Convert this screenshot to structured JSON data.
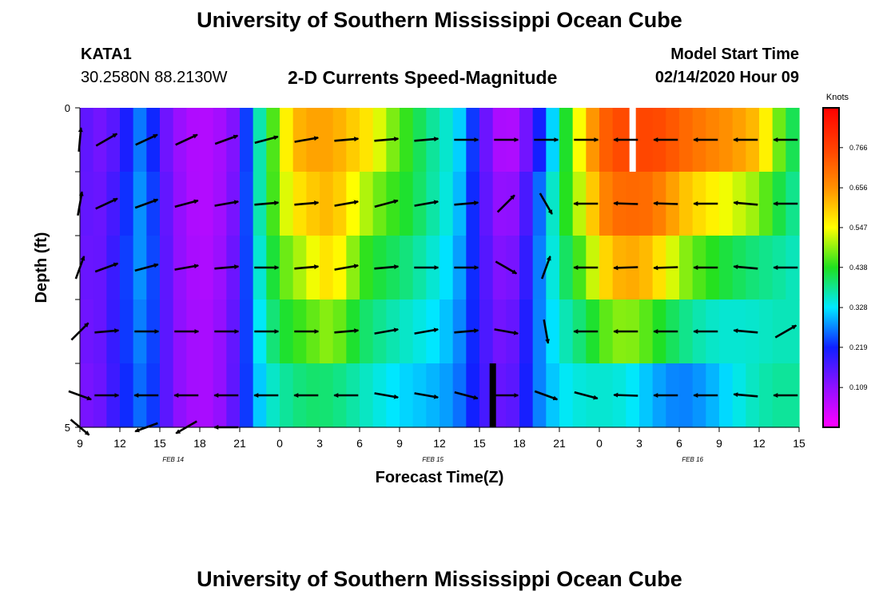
{
  "page": {
    "title_top": "University of Southern Mississippi Ocean Cube",
    "title_bottom": "University of Southern Mississippi Ocean Cube",
    "station": "KATA1",
    "coords": "30.2580N 88.2130W",
    "subtitle": "2-D Currents Speed-Magnitude",
    "model_label": "Model Start Time",
    "model_time": "02/14/2020 Hour 09"
  },
  "chart_data": {
    "type": "heatmap",
    "title": "2-D Currents Speed-Magnitude",
    "xlabel": "Forecast Time(Z)",
    "ylabel": "Depth (ft)",
    "colorbar_label": "Knots",
    "colorbar_ticks": [
      "0.109",
      "0.219",
      "0.328",
      "0.438",
      "0.547",
      "0.656",
      "0.766"
    ],
    "colorbar_range": [
      0,
      0.875
    ],
    "ylim": [
      0,
      5
    ],
    "ytick_labels": [
      {
        "v": 0,
        "label": "0"
      },
      {
        "v": 5,
        "label": "5"
      }
    ],
    "xlim": [
      9,
      63
    ],
    "x_ticks": [
      {
        "v": 9,
        "label": "9"
      },
      {
        "v": 12,
        "label": "12"
      },
      {
        "v": 15,
        "label": "15"
      },
      {
        "v": 18,
        "label": "18"
      },
      {
        "v": 21,
        "label": "21"
      },
      {
        "v": 24,
        "label": "0"
      },
      {
        "v": 27,
        "label": "3"
      },
      {
        "v": 30,
        "label": "6"
      },
      {
        "v": 33,
        "label": "9"
      },
      {
        "v": 36,
        "label": "12"
      },
      {
        "v": 39,
        "label": "15"
      },
      {
        "v": 42,
        "label": "18"
      },
      {
        "v": 45,
        "label": "21"
      },
      {
        "v": 48,
        "label": "0"
      },
      {
        "v": 51,
        "label": "3"
      },
      {
        "v": 54,
        "label": "6"
      },
      {
        "v": 57,
        "label": "9"
      },
      {
        "v": 60,
        "label": "12"
      },
      {
        "v": 63,
        "label": "15"
      }
    ],
    "date_labels": [
      {
        "v": 16,
        "label": "FEB 14"
      },
      {
        "v": 35.5,
        "label": "FEB 15"
      },
      {
        "v": 55,
        "label": "FEB 16"
      }
    ],
    "depth_rows": [
      0,
      1,
      2,
      3,
      4,
      5
    ],
    "times": [
      9,
      10,
      11,
      12,
      13,
      14,
      15,
      16,
      17,
      18,
      19,
      20,
      21,
      22,
      23,
      24,
      25,
      26,
      27,
      28,
      29,
      30,
      31,
      32,
      33,
      34,
      35,
      36,
      37,
      38,
      39,
      40,
      41,
      42,
      43,
      44,
      45,
      46,
      47,
      48,
      49,
      50,
      51,
      52,
      53,
      54,
      55,
      56,
      57,
      58,
      59,
      60,
      61,
      62,
      63
    ],
    "speed": [
      [
        0.18,
        0.12,
        0.14,
        0.16,
        0.24,
        0.28,
        0.15,
        0.11,
        0.08,
        0.07,
        0.08,
        0.1,
        0.14,
        0.32,
        0.4,
        0.5,
        0.62,
        0.65,
        0.66,
        0.65,
        0.64,
        0.62,
        0.6,
        0.52,
        0.47,
        0.42,
        0.38,
        0.36,
        0.34,
        0.3,
        0.18,
        0.09,
        0.04,
        0.08,
        0.14,
        0.22,
        0.35,
        0.48,
        0.62,
        0.72,
        0.78,
        0.78,
        0.79,
        0.8,
        0.79,
        0.76,
        0.74,
        0.72,
        0.71,
        0.7,
        0.68,
        0.65,
        0.55,
        0.45,
        0.4
      ],
      [
        0.17,
        0.13,
        0.15,
        0.18,
        0.26,
        0.29,
        0.17,
        0.12,
        0.09,
        0.07,
        0.08,
        0.1,
        0.15,
        0.33,
        0.42,
        0.52,
        0.6,
        0.62,
        0.62,
        0.62,
        0.58,
        0.55,
        0.52,
        0.48,
        0.46,
        0.44,
        0.4,
        0.37,
        0.34,
        0.28,
        0.17,
        0.12,
        0.08,
        0.12,
        0.2,
        0.3,
        0.4,
        0.5,
        0.58,
        0.68,
        0.72,
        0.72,
        0.72,
        0.72,
        0.7,
        0.68,
        0.66,
        0.64,
        0.62,
        0.6,
        0.58,
        0.56,
        0.48,
        0.42,
        0.38
      ],
      [
        0.16,
        0.13,
        0.16,
        0.2,
        0.27,
        0.3,
        0.18,
        0.12,
        0.09,
        0.07,
        0.08,
        0.11,
        0.16,
        0.32,
        0.4,
        0.48,
        0.52,
        0.56,
        0.6,
        0.62,
        0.56,
        0.5,
        0.46,
        0.44,
        0.42,
        0.4,
        0.37,
        0.35,
        0.32,
        0.27,
        0.18,
        0.13,
        0.1,
        0.14,
        0.22,
        0.32,
        0.4,
        0.46,
        0.52,
        0.62,
        0.68,
        0.7,
        0.7,
        0.68,
        0.62,
        0.56,
        0.52,
        0.5,
        0.48,
        0.46,
        0.44,
        0.42,
        0.4,
        0.38,
        0.36
      ],
      [
        0.15,
        0.13,
        0.16,
        0.21,
        0.26,
        0.29,
        0.19,
        0.12,
        0.1,
        0.08,
        0.09,
        0.12,
        0.17,
        0.3,
        0.38,
        0.44,
        0.46,
        0.48,
        0.52,
        0.55,
        0.48,
        0.42,
        0.4,
        0.39,
        0.38,
        0.37,
        0.35,
        0.33,
        0.3,
        0.26,
        0.19,
        0.14,
        0.12,
        0.16,
        0.24,
        0.3,
        0.36,
        0.4,
        0.44,
        0.5,
        0.55,
        0.56,
        0.56,
        0.52,
        0.48,
        0.45,
        0.42,
        0.4,
        0.38,
        0.37,
        0.36,
        0.36,
        0.36,
        0.36,
        0.35
      ],
      [
        0.14,
        0.13,
        0.16,
        0.21,
        0.25,
        0.28,
        0.19,
        0.12,
        0.1,
        0.08,
        0.09,
        0.12,
        0.18,
        0.29,
        0.36,
        0.4,
        0.42,
        0.44,
        0.44,
        0.44,
        0.42,
        0.4,
        0.38,
        0.36,
        0.34,
        0.33,
        0.32,
        0.31,
        0.29,
        0.25,
        0.19,
        0.15,
        0.13,
        0.17,
        0.25,
        0.3,
        0.34,
        0.36,
        0.38,
        0.4,
        0.42,
        0.42,
        0.4,
        0.38,
        0.36,
        0.34,
        0.33,
        0.32,
        0.32,
        0.33,
        0.34,
        0.35,
        0.36,
        0.37,
        0.37
      ],
      [
        0.13,
        0.12,
        0.15,
        0.2,
        0.24,
        0.27,
        0.19,
        0.12,
        0.1,
        0.08,
        0.09,
        0.12,
        0.18,
        0.28,
        0.32,
        0.34,
        0.35,
        0.36,
        0.36,
        0.35,
        0.34,
        0.33,
        0.32,
        0.31,
        0.3,
        0.3,
        0.29,
        0.28,
        0.27,
        0.24,
        0.19,
        0.16,
        0.14,
        0.18,
        0.25,
        0.29,
        0.31,
        0.32,
        0.32,
        0.3,
        0.28,
        0.26,
        0.24,
        0.22,
        0.2,
        0.2,
        0.22,
        0.26,
        0.3,
        0.33,
        0.36,
        0.38,
        0.39,
        0.39,
        0.38
      ]
    ],
    "missing_cells": [
      {
        "t": 50.5,
        "d": 0,
        "color": "#ffffff"
      },
      {
        "t": 40,
        "d": 5,
        "color": "#000000"
      }
    ],
    "vectors": [
      {
        "d": 0,
        "items": [
          [
            9,
            85
          ],
          [
            11,
            30
          ],
          [
            14,
            25
          ],
          [
            17,
            25
          ],
          [
            20,
            20
          ],
          [
            23,
            15
          ],
          [
            26,
            10
          ],
          [
            29,
            5
          ],
          [
            32,
            5
          ],
          [
            35,
            5
          ],
          [
            38,
            0
          ],
          [
            41,
            0
          ],
          [
            44,
            0
          ],
          [
            47,
            0
          ],
          [
            50,
            180
          ],
          [
            53,
            180
          ],
          [
            56,
            180
          ],
          [
            59,
            180
          ],
          [
            62,
            180
          ]
        ]
      },
      {
        "d": 1,
        "items": [
          [
            9,
            80
          ],
          [
            11,
            25
          ],
          [
            14,
            20
          ],
          [
            17,
            15
          ],
          [
            20,
            10
          ],
          [
            23,
            5
          ],
          [
            26,
            5
          ],
          [
            29,
            10
          ],
          [
            32,
            15
          ],
          [
            35,
            10
          ],
          [
            38,
            5
          ],
          [
            41,
            45
          ],
          [
            44,
            300
          ],
          [
            47,
            180
          ],
          [
            50,
            178
          ],
          [
            53,
            178
          ],
          [
            56,
            180
          ],
          [
            59,
            175
          ],
          [
            62,
            180
          ]
        ]
      },
      {
        "d": 2,
        "items": [
          [
            9,
            70
          ],
          [
            11,
            20
          ],
          [
            14,
            15
          ],
          [
            17,
            10
          ],
          [
            20,
            5
          ],
          [
            23,
            0
          ],
          [
            26,
            5
          ],
          [
            29,
            10
          ],
          [
            32,
            5
          ],
          [
            35,
            0
          ],
          [
            38,
            0
          ],
          [
            41,
            330
          ],
          [
            44,
            70
          ],
          [
            47,
            180
          ],
          [
            50,
            182
          ],
          [
            53,
            182
          ],
          [
            56,
            180
          ],
          [
            59,
            175
          ],
          [
            62,
            180
          ]
        ]
      },
      {
        "d": 3,
        "items": [
          [
            9,
            45
          ],
          [
            11,
            5
          ],
          [
            14,
            0
          ],
          [
            17,
            0
          ],
          [
            20,
            0
          ],
          [
            23,
            0
          ],
          [
            26,
            0
          ],
          [
            29,
            5
          ],
          [
            32,
            10
          ],
          [
            35,
            10
          ],
          [
            38,
            5
          ],
          [
            41,
            350
          ],
          [
            44,
            280
          ],
          [
            47,
            180
          ],
          [
            50,
            180
          ],
          [
            53,
            180
          ],
          [
            56,
            180
          ],
          [
            59,
            175
          ],
          [
            62,
            30
          ]
        ]
      },
      {
        "d": 4,
        "items": [
          [
            9,
            340
          ],
          [
            11,
            0
          ],
          [
            14,
            180
          ],
          [
            17,
            180
          ],
          [
            20,
            180
          ],
          [
            23,
            180
          ],
          [
            26,
            180
          ],
          [
            29,
            180
          ],
          [
            32,
            350
          ],
          [
            35,
            350
          ],
          [
            38,
            345
          ],
          [
            41,
            0
          ],
          [
            44,
            340
          ],
          [
            47,
            345
          ],
          [
            50,
            178
          ],
          [
            53,
            180
          ],
          [
            56,
            180
          ],
          [
            59,
            175
          ],
          [
            62,
            180
          ]
        ]
      },
      {
        "d": 5,
        "items": [
          [
            9,
            320
          ],
          [
            14,
            200
          ],
          [
            17,
            210
          ],
          [
            20,
            180
          ]
        ]
      }
    ]
  }
}
